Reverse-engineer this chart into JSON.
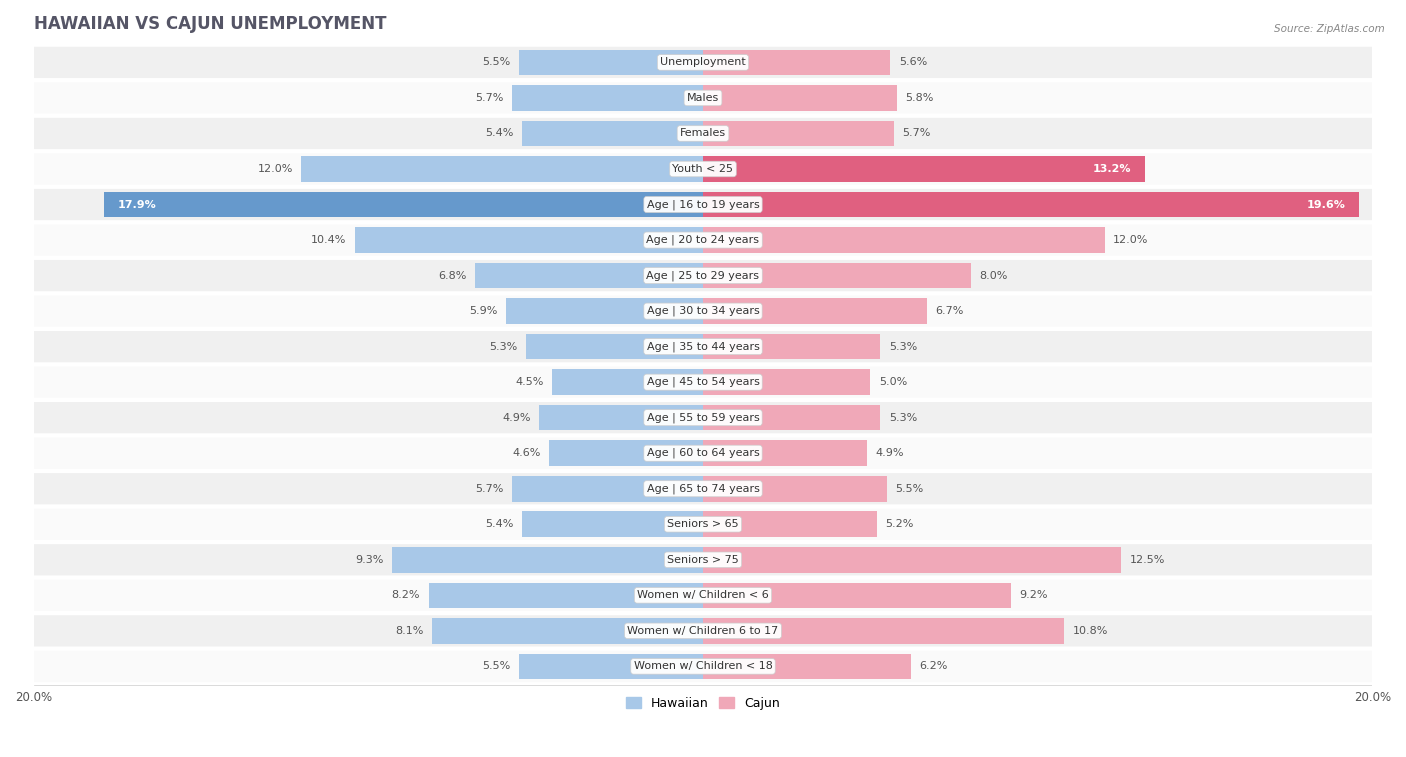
{
  "title": "HAWAIIAN VS CAJUN UNEMPLOYMENT",
  "source": "Source: ZipAtlas.com",
  "categories": [
    "Unemployment",
    "Males",
    "Females",
    "Youth < 25",
    "Age | 16 to 19 years",
    "Age | 20 to 24 years",
    "Age | 25 to 29 years",
    "Age | 30 to 34 years",
    "Age | 35 to 44 years",
    "Age | 45 to 54 years",
    "Age | 55 to 59 years",
    "Age | 60 to 64 years",
    "Age | 65 to 74 years",
    "Seniors > 65",
    "Seniors > 75",
    "Women w/ Children < 6",
    "Women w/ Children 6 to 17",
    "Women w/ Children < 18"
  ],
  "hawaiian": [
    5.5,
    5.7,
    5.4,
    12.0,
    17.9,
    10.4,
    6.8,
    5.9,
    5.3,
    4.5,
    4.9,
    4.6,
    5.7,
    5.4,
    9.3,
    8.2,
    8.1,
    5.5
  ],
  "cajun": [
    5.6,
    5.8,
    5.7,
    13.2,
    19.6,
    12.0,
    8.0,
    6.7,
    5.3,
    5.0,
    5.3,
    4.9,
    5.5,
    5.2,
    12.5,
    9.2,
    10.8,
    6.2
  ],
  "hawaiian_color": "#a8c8e8",
  "cajun_color": "#f0a8b8",
  "hawaiian_color_highlight": "#6699cc",
  "cajun_color_highlight": "#e06080",
  "bg_color": "#ffffff",
  "row_bg_even": "#f0f0f0",
  "row_bg_odd": "#fafafa",
  "axis_limit": 20.0,
  "legend_hawaiian": "Hawaiian",
  "legend_cajun": "Cajun",
  "label_threshold_inner": 13.0
}
